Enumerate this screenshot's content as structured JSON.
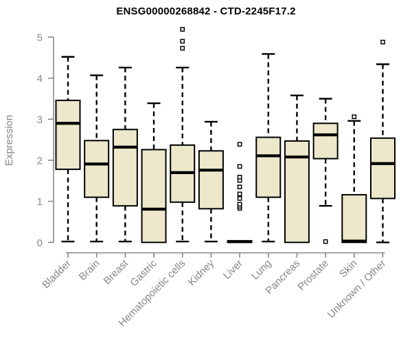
{
  "page": {
    "background": "#ffffff"
  },
  "chart_data": {
    "type": "boxplot",
    "title": "ENSG00000268842 - CTD-2245F17.2",
    "xlabel": "",
    "ylabel": "Expression",
    "ylim": [
      0,
      5
    ],
    "yticks": [
      0,
      1,
      2,
      3,
      4,
      5
    ],
    "grid": false,
    "legend": "none",
    "colors": {
      "box_fill": "#EDE7CB",
      "box_stroke": "#000000",
      "median": "#000000",
      "whisker": "#000000",
      "outlier_stroke": "#000000",
      "outlier_fill": "#ffffff",
      "axis": "#878787",
      "tick_label": "#878787",
      "title": "#000000"
    },
    "categories": [
      "Bladder",
      "Brain",
      "Breast",
      "Gastric",
      "Hematopoietic cells",
      "Kidney",
      "Liver",
      "Lung",
      "Pancreas",
      "Prostate",
      "Skin",
      "Unknown / Other"
    ],
    "boxes": [
      {
        "category": "Bladder",
        "whisker_low": 0.02,
        "q1": 1.78,
        "median": 2.9,
        "q3": 3.46,
        "whisker_high": 4.52,
        "outliers": []
      },
      {
        "category": "Brain",
        "whisker_low": 0.02,
        "q1": 1.1,
        "median": 1.91,
        "q3": 2.48,
        "whisker_high": 4.07,
        "outliers": []
      },
      {
        "category": "Breast",
        "whisker_low": 0.02,
        "q1": 0.89,
        "median": 2.32,
        "q3": 2.75,
        "whisker_high": 4.26,
        "outliers": []
      },
      {
        "category": "Gastric",
        "whisker_low": 0.0,
        "q1": 0.0,
        "median": 0.81,
        "q3": 2.26,
        "whisker_high": 3.39,
        "outliers": []
      },
      {
        "category": "Hematopoietic cells",
        "whisker_low": 0.02,
        "q1": 0.98,
        "median": 1.7,
        "q3": 2.37,
        "whisker_high": 4.26,
        "outliers": [
          4.73,
          4.9,
          5.19
        ]
      },
      {
        "category": "Kidney",
        "whisker_low": 0.02,
        "q1": 0.82,
        "median": 1.76,
        "q3": 2.23,
        "whisker_high": 2.94,
        "outliers": []
      },
      {
        "category": "Liver",
        "whisker_low": 0.0,
        "q1": 0.0,
        "median": 0.02,
        "q3": 0.04,
        "whisker_high": 0.04,
        "outliers": [
          0.83,
          0.88,
          0.93,
          1.07,
          1.18,
          1.35,
          1.51,
          1.59,
          1.85,
          2.39
        ]
      },
      {
        "category": "Lung",
        "whisker_low": 0.02,
        "q1": 1.1,
        "median": 2.11,
        "q3": 2.56,
        "whisker_high": 4.59,
        "outliers": []
      },
      {
        "category": "Pancreas",
        "whisker_low": 0.0,
        "q1": 0.0,
        "median": 2.08,
        "q3": 2.47,
        "whisker_high": 3.58,
        "outliers": []
      },
      {
        "category": "Prostate",
        "whisker_low": 0.89,
        "q1": 2.04,
        "median": 2.62,
        "q3": 2.9,
        "whisker_high": 3.5,
        "outliers": [
          0.02
        ]
      },
      {
        "category": "Skin",
        "whisker_low": 0.0,
        "q1": 0.0,
        "median": 0.03,
        "q3": 1.16,
        "whisker_high": 2.96,
        "outliers": [
          3.06
        ]
      },
      {
        "category": "Unknown / Other",
        "whisker_low": 0.0,
        "q1": 1.07,
        "median": 1.92,
        "q3": 2.54,
        "whisker_high": 4.34,
        "outliers": [
          4.88
        ]
      }
    ]
  }
}
